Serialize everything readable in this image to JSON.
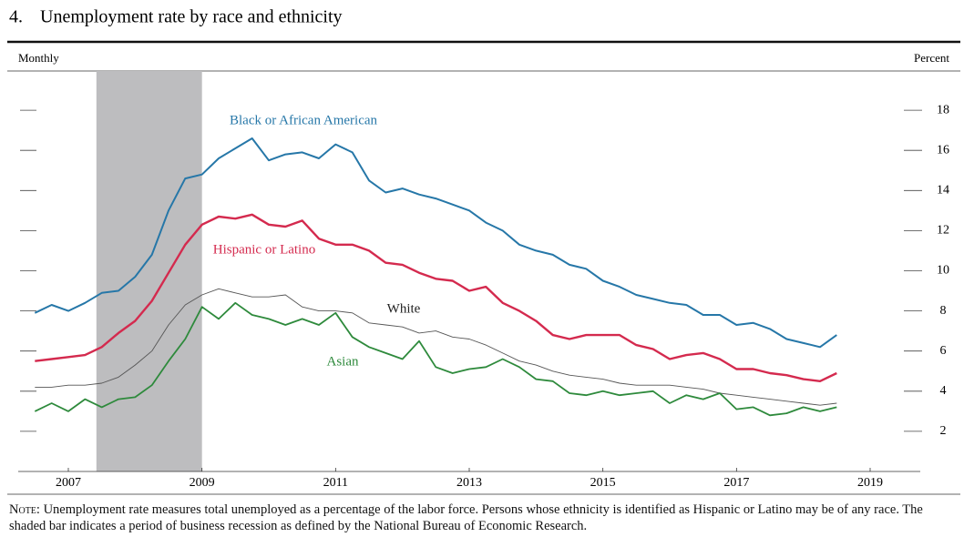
{
  "chart_data": {
    "type": "line",
    "figure_number": "4.",
    "title": "Unemployment rate by race and ethnicity",
    "frequency_label": "Monthly",
    "y_axis_label": "Percent",
    "note_label": "Note:",
    "note": "Unemployment rate measures total unemployed as a percentage of the labor force. Persons whose ethnicity is identified as Hispanic or Latino may be of any race. The shaded bar indicates a period of business recession as defined by the National Bureau of Economic Research.",
    "recession": [
      2007.92,
      2009.5
    ],
    "recession_color": "#bdbdbf",
    "xlim": [
      2006.75,
      2020.25
    ],
    "xticks": [
      {
        "value": 2007.5,
        "label": "2007"
      },
      {
        "value": 2009.5,
        "label": "2009"
      },
      {
        "value": 2011.5,
        "label": "2011"
      },
      {
        "value": 2013.5,
        "label": "2013"
      },
      {
        "value": 2015.5,
        "label": "2015"
      },
      {
        "value": 2017.5,
        "label": "2017"
      },
      {
        "value": 2019.5,
        "label": "2019"
      }
    ],
    "ylim": [
      0,
      20
    ],
    "yticks": [
      2,
      4,
      6,
      8,
      10,
      12,
      14,
      16,
      18
    ],
    "x": [
      2007,
      2007.25,
      2007.5,
      2007.75,
      2008,
      2008.25,
      2008.5,
      2008.75,
      2009,
      2009.25,
      2009.5,
      2009.75,
      2010,
      2010.25,
      2010.5,
      2010.75,
      2011,
      2011.25,
      2011.5,
      2011.75,
      2012,
      2012.25,
      2012.5,
      2012.75,
      2013,
      2013.25,
      2013.5,
      2013.75,
      2014,
      2014.25,
      2014.5,
      2014.75,
      2015,
      2015.25,
      2015.5,
      2015.75,
      2016,
      2016.25,
      2016.5,
      2016.75,
      2017,
      2017.25,
      2017.5,
      2017.75,
      2018,
      2018.25,
      2018.5,
      2018.75,
      2019
    ],
    "series": [
      {
        "name": "Black or African American",
        "color": "#2677a8",
        "width": 2,
        "values": [
          7.9,
          8.3,
          8.0,
          8.4,
          8.9,
          9.0,
          9.7,
          10.8,
          13.0,
          14.6,
          14.8,
          15.6,
          16.1,
          16.6,
          15.5,
          15.8,
          15.9,
          15.6,
          16.3,
          15.9,
          14.5,
          13.9,
          14.1,
          13.8,
          13.6,
          13.3,
          13.0,
          12.4,
          12.0,
          11.3,
          11.0,
          10.8,
          10.3,
          10.1,
          9.5,
          9.2,
          8.8,
          8.6,
          8.4,
          8.3,
          7.8,
          7.8,
          7.3,
          7.4,
          7.1,
          6.6,
          6.4,
          6.2,
          6.8
        ]
      },
      {
        "name": "Hispanic or Latino",
        "color": "#d42a4e",
        "width": 2.4,
        "values": [
          5.5,
          5.6,
          5.7,
          5.8,
          6.2,
          6.9,
          7.5,
          8.5,
          9.9,
          11.3,
          12.3,
          12.7,
          12.6,
          12.8,
          12.3,
          12.2,
          12.5,
          11.6,
          11.3,
          11.3,
          11.0,
          10.4,
          10.3,
          9.9,
          9.6,
          9.5,
          9.0,
          9.2,
          8.4,
          8.0,
          7.5,
          6.8,
          6.6,
          6.8,
          6.8,
          6.8,
          6.3,
          6.1,
          5.6,
          5.8,
          5.9,
          5.6,
          5.1,
          5.1,
          4.9,
          4.8,
          4.6,
          4.5,
          4.9
        ]
      },
      {
        "name": "White",
        "color": "#555555",
        "width": 0.9,
        "values": [
          4.2,
          4.2,
          4.3,
          4.3,
          4.4,
          4.7,
          5.3,
          6.0,
          7.3,
          8.3,
          8.8,
          9.1,
          8.9,
          8.7,
          8.7,
          8.8,
          8.2,
          8.0,
          8.0,
          7.9,
          7.4,
          7.3,
          7.2,
          6.9,
          7.0,
          6.7,
          6.6,
          6.3,
          5.9,
          5.5,
          5.3,
          5.0,
          4.8,
          4.7,
          4.6,
          4.4,
          4.3,
          4.3,
          4.3,
          4.2,
          4.1,
          3.9,
          3.8,
          3.7,
          3.6,
          3.5,
          3.4,
          3.3,
          3.4
        ]
      },
      {
        "name": "Asian",
        "color": "#2e8a3c",
        "width": 1.8,
        "values": [
          3.0,
          3.4,
          3.0,
          3.6,
          3.2,
          3.6,
          3.7,
          4.3,
          5.5,
          6.6,
          8.2,
          7.6,
          8.4,
          7.8,
          7.6,
          7.3,
          7.6,
          7.3,
          7.9,
          6.7,
          6.2,
          5.9,
          5.6,
          6.5,
          5.2,
          4.9,
          5.1,
          5.2,
          5.6,
          5.2,
          4.6,
          4.5,
          3.9,
          3.8,
          4.0,
          3.8,
          3.9,
          4.0,
          3.4,
          3.8,
          3.6,
          3.9,
          3.1,
          3.2,
          2.8,
          2.9,
          3.2,
          3.0,
          3.2
        ]
      }
    ]
  }
}
